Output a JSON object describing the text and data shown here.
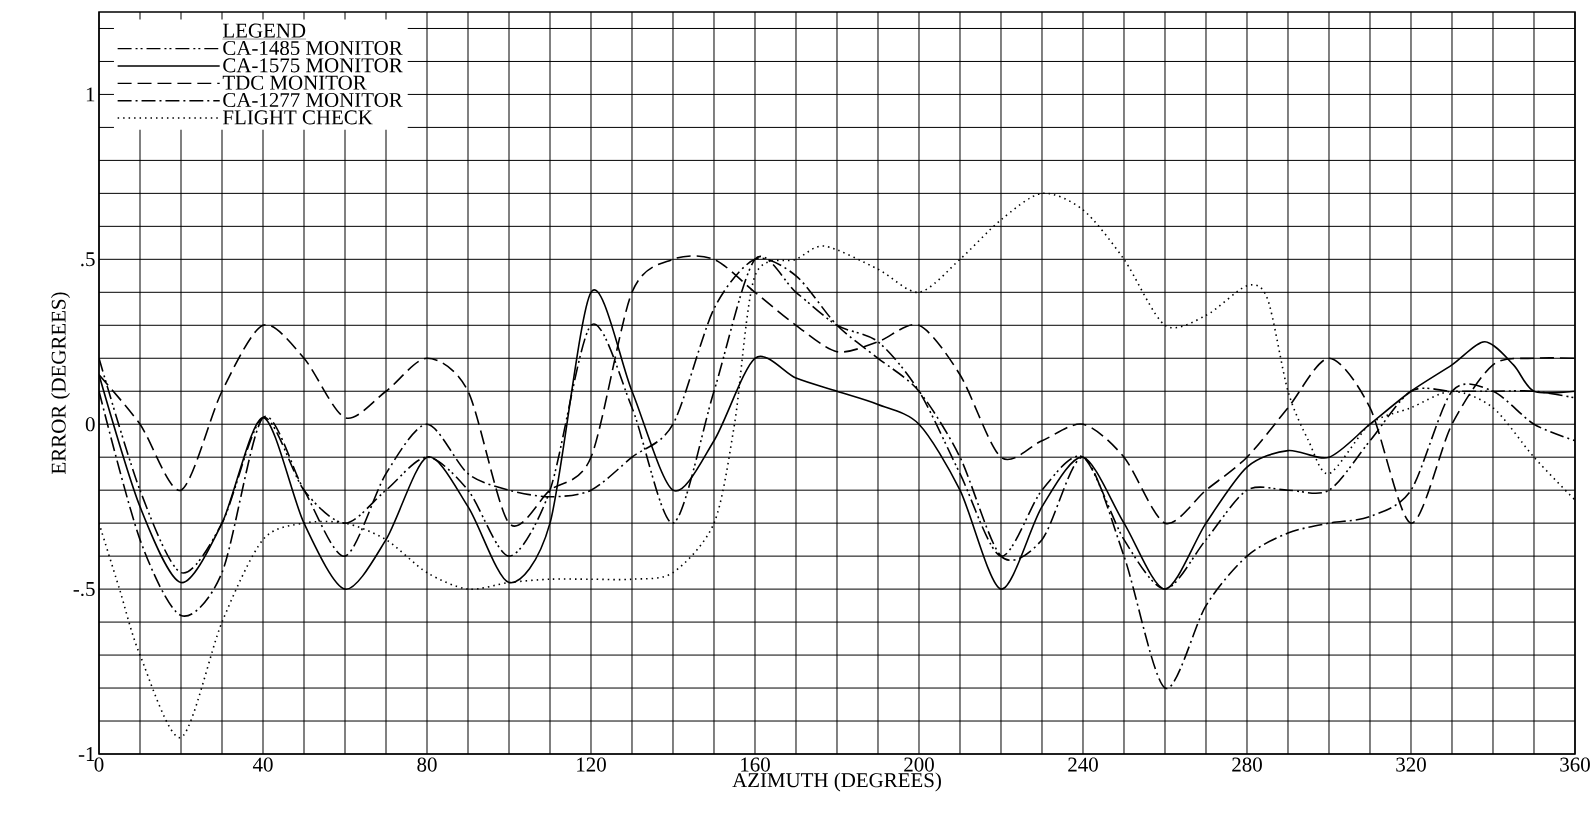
{
  "chart_data": {
    "type": "line",
    "xlabel": "AZIMUTH (DEGREES)",
    "ylabel": "ERROR (DEGREES)",
    "legend_title": "LEGEND",
    "legend": "top left",
    "grid": true,
    "xlim": [
      0,
      360
    ],
    "ylim": [
      -1,
      1.25
    ],
    "xticks": [
      0,
      {
        "value": 10,
        "label": null
      },
      {
        "value": 20,
        "label": null
      },
      {
        "value": 30,
        "label": null
      },
      40,
      {
        "value": 50,
        "label": null
      },
      {
        "value": 60,
        "label": null
      },
      {
        "value": 70,
        "label": null
      },
      80,
      {
        "value": 90,
        "label": null
      },
      {
        "value": 100,
        "label": null
      },
      {
        "value": 110,
        "label": null
      },
      120,
      {
        "value": 130,
        "label": null
      },
      {
        "value": 140,
        "label": null
      },
      {
        "value": 150,
        "label": null
      },
      160,
      {
        "value": 170,
        "label": null
      },
      {
        "value": 180,
        "label": null
      },
      {
        "value": 190,
        "label": null
      },
      200,
      {
        "value": 210,
        "label": null
      },
      {
        "value": 220,
        "label": null
      },
      {
        "value": 230,
        "label": null
      },
      240,
      {
        "value": 250,
        "label": null
      },
      {
        "value": 260,
        "label": null
      },
      {
        "value": 270,
        "label": null
      },
      280,
      {
        "value": 290,
        "label": null
      },
      {
        "value": 300,
        "label": null
      },
      {
        "value": 310,
        "label": null
      },
      320,
      {
        "value": 330,
        "label": null
      },
      {
        "value": 340,
        "label": null
      },
      {
        "value": 350,
        "label": null
      },
      360
    ],
    "yticks": [
      -1,
      {
        "value": -0.9,
        "label": null
      },
      {
        "value": -0.8,
        "label": null
      },
      {
        "value": -0.7,
        "label": null
      },
      {
        "value": -0.6,
        "label": null
      },
      {
        "value": -0.5,
        "label": "-.5"
      },
      {
        "value": -0.4,
        "label": null
      },
      {
        "value": -0.3,
        "label": null
      },
      {
        "value": -0.2,
        "label": null
      },
      {
        "value": -0.1,
        "label": null
      },
      0,
      {
        "value": 0.1,
        "label": null
      },
      {
        "value": 0.2,
        "label": null
      },
      {
        "value": 0.3,
        "label": null
      },
      {
        "value": 0.4,
        "label": null
      },
      {
        "value": 0.5,
        "label": ".5"
      },
      {
        "value": 0.6,
        "label": null
      },
      {
        "value": 0.7,
        "label": null
      },
      {
        "value": 0.8,
        "label": null
      },
      {
        "value": 0.9,
        "label": null
      },
      1,
      {
        "value": 1.1,
        "label": null
      },
      {
        "value": 1.2,
        "label": null
      }
    ],
    "series": [
      {
        "name": "CA-1485 MONITOR",
        "color": "#000000",
        "line_style": "dashdotdotted",
        "x": [
          0,
          10,
          20,
          30,
          40,
          50,
          60,
          70,
          80,
          90,
          100,
          110,
          120,
          130,
          140,
          150,
          160,
          170,
          180,
          190,
          200,
          210,
          220,
          230,
          240,
          250,
          260,
          270,
          280,
          290,
          300,
          310,
          320,
          330,
          340,
          350,
          360
        ],
        "values": [
          0.2,
          -0.2,
          -0.45,
          -0.3,
          0.02,
          -0.2,
          -0.3,
          -0.2,
          -0.1,
          -0.2,
          -0.4,
          -0.2,
          0.3,
          0.05,
          -0.3,
          0.1,
          0.5,
          0.4,
          0.3,
          0.25,
          0.1,
          -0.15,
          -0.4,
          -0.2,
          -0.1,
          -0.35,
          -0.5,
          -0.35,
          -0.2,
          -0.2,
          -0.2,
          -0.05,
          0.1,
          0.1,
          0.1,
          0.1,
          0.08
        ]
      },
      {
        "name": "CA-1575 MONITOR",
        "color": "#000000",
        "line_style": "solid",
        "x": [
          0,
          10,
          20,
          30,
          40,
          50,
          60,
          70,
          80,
          90,
          100,
          110,
          120,
          130,
          140,
          150,
          160,
          170,
          180,
          190,
          200,
          210,
          220,
          230,
          240,
          250,
          260,
          270,
          280,
          290,
          300,
          310,
          320,
          330,
          338,
          345,
          350,
          360
        ],
        "values": [
          0.15,
          -0.25,
          -0.48,
          -0.3,
          0.02,
          -0.3,
          -0.5,
          -0.35,
          -0.1,
          -0.25,
          -0.48,
          -0.3,
          0.4,
          0.1,
          -0.2,
          -0.05,
          0.2,
          0.14,
          0.1,
          0.06,
          0.0,
          -0.2,
          -0.5,
          -0.25,
          -0.1,
          -0.3,
          -0.5,
          -0.3,
          -0.13,
          -0.08,
          -0.1,
          0.0,
          0.1,
          0.18,
          0.25,
          0.18,
          0.1,
          0.1
        ]
      },
      {
        "name": "TDC MONITOR",
        "color": "#000000",
        "line_style": "dashed",
        "x": [
          0,
          10,
          20,
          30,
          40,
          50,
          60,
          70,
          80,
          90,
          100,
          110,
          120,
          130,
          140,
          150,
          160,
          170,
          180,
          190,
          200,
          210,
          220,
          230,
          240,
          250,
          260,
          270,
          280,
          290,
          300,
          310,
          320,
          330,
          340,
          350,
          360
        ],
        "values": [
          0.15,
          0.0,
          -0.2,
          0.1,
          0.3,
          0.2,
          0.02,
          0.1,
          0.2,
          0.1,
          -0.3,
          -0.2,
          -0.1,
          0.4,
          0.5,
          0.5,
          0.4,
          0.3,
          0.22,
          0.25,
          0.3,
          0.15,
          -0.1,
          -0.05,
          0.0,
          -0.1,
          -0.3,
          -0.2,
          -0.1,
          0.05,
          0.2,
          0.05,
          -0.3,
          0.0,
          0.18,
          0.2,
          0.2
        ]
      },
      {
        "name": "CA-1277 MONITOR",
        "color": "#000000",
        "line_style": "dashdotted",
        "x": [
          0,
          10,
          20,
          30,
          40,
          50,
          60,
          70,
          80,
          90,
          100,
          110,
          120,
          130,
          140,
          150,
          160,
          170,
          180,
          190,
          200,
          210,
          220,
          230,
          240,
          250,
          260,
          270,
          280,
          290,
          300,
          310,
          320,
          330,
          340,
          350,
          360
        ],
        "values": [
          0.1,
          -0.35,
          -0.58,
          -0.45,
          0.02,
          -0.2,
          -0.4,
          -0.15,
          0.0,
          -0.15,
          -0.2,
          -0.22,
          -0.2,
          -0.1,
          0.0,
          0.35,
          0.5,
          0.45,
          0.3,
          0.2,
          0.1,
          -0.1,
          -0.4,
          -0.35,
          -0.1,
          -0.4,
          -0.8,
          -0.55,
          -0.4,
          -0.33,
          -0.3,
          -0.28,
          -0.2,
          0.1,
          0.1,
          0.0,
          -0.05
        ]
      },
      {
        "name": "FLIGHT CHECK",
        "color": "#000000",
        "line_style": "dotted",
        "x": [
          0,
          5,
          10,
          20,
          30,
          40,
          50,
          60,
          70,
          80,
          90,
          100,
          110,
          120,
          130,
          140,
          150,
          155,
          160,
          170,
          177,
          190,
          200,
          210,
          220,
          230,
          240,
          250,
          260,
          270,
          280,
          285,
          290,
          295,
          300,
          310,
          320,
          330,
          340,
          350,
          360
        ],
        "values": [
          -0.3,
          -0.5,
          -0.7,
          -0.95,
          -0.6,
          -0.35,
          -0.3,
          -0.3,
          -0.35,
          -0.45,
          -0.5,
          -0.48,
          -0.47,
          -0.47,
          -0.47,
          -0.45,
          -0.3,
          0.0,
          0.45,
          0.5,
          0.54,
          0.47,
          0.4,
          0.5,
          0.62,
          0.7,
          0.65,
          0.5,
          0.3,
          0.33,
          0.42,
          0.38,
          0.1,
          -0.05,
          -0.15,
          0.0,
          0.05,
          0.1,
          0.05,
          -0.1,
          -0.23
        ]
      }
    ]
  }
}
